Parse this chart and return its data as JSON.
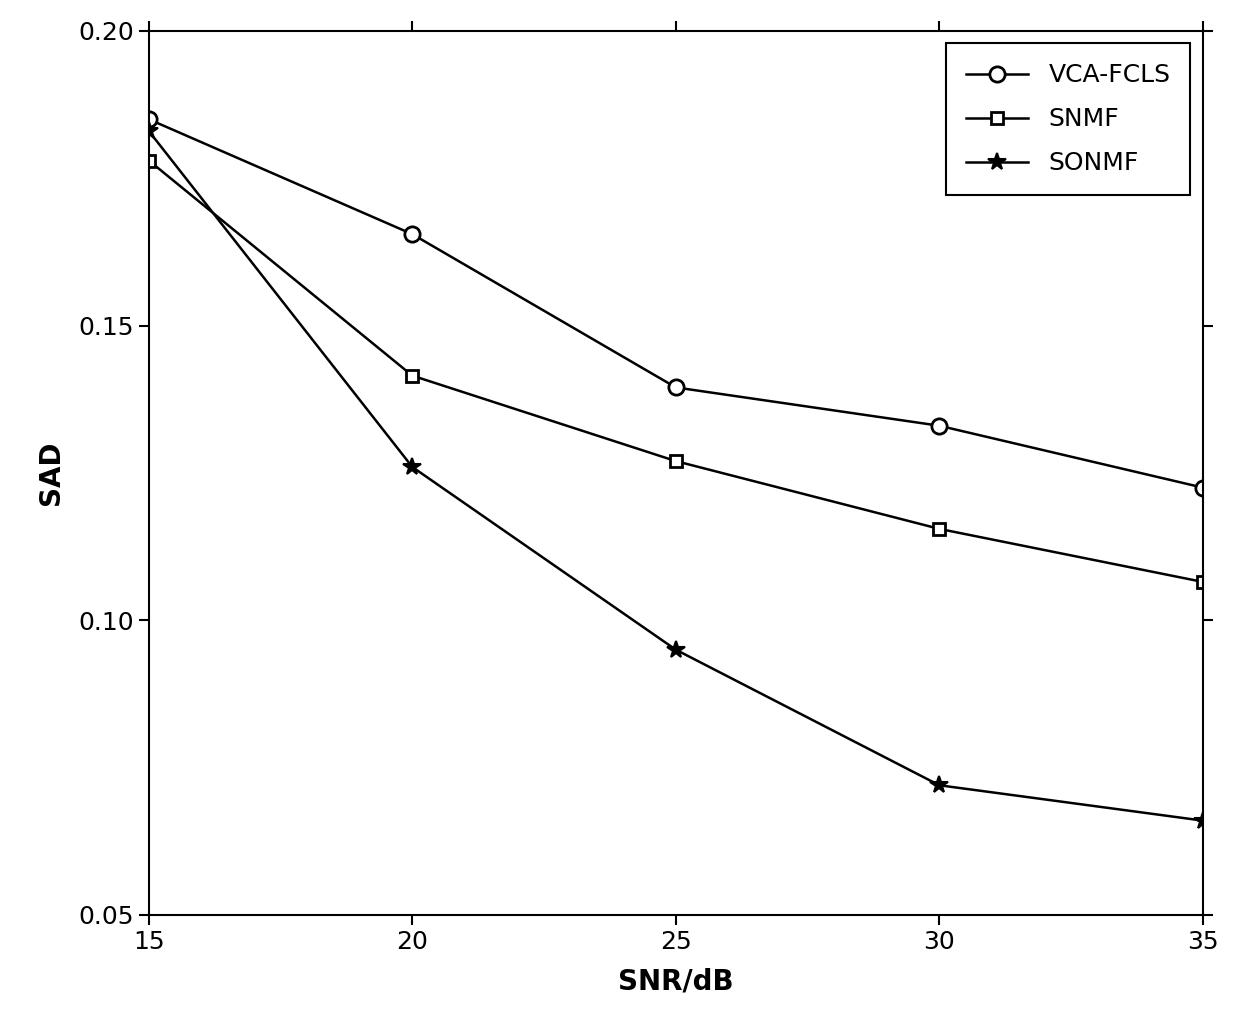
{
  "x": [
    15,
    20,
    25,
    30,
    35
  ],
  "vca_fcls": [
    0.185,
    0.1655,
    0.1395,
    0.133,
    0.1225
  ],
  "snmf": [
    0.178,
    0.1415,
    0.127,
    0.1155,
    0.1065
  ],
  "sonmf": [
    0.183,
    0.126,
    0.095,
    0.072,
    0.066
  ],
  "xlabel": "SNR/dB",
  "ylabel": "SAD",
  "ylim": [
    0.05,
    0.2
  ],
  "xlim": [
    15,
    35
  ],
  "yticks": [
    0.05,
    0.1,
    0.15,
    0.2
  ],
  "xticks": [
    15,
    20,
    25,
    30,
    35
  ],
  "legend_labels": [
    "VCA-FCLS",
    "SNMF",
    "SONMF"
  ],
  "line_color": "#000000",
  "bg_color": "#ffffff",
  "fontsize_label": 20,
  "fontsize_tick": 18,
  "fontsize_legend": 18,
  "linewidth": 1.8,
  "markersize_circle": 11,
  "markersize_square": 9,
  "markersize_star": 13
}
